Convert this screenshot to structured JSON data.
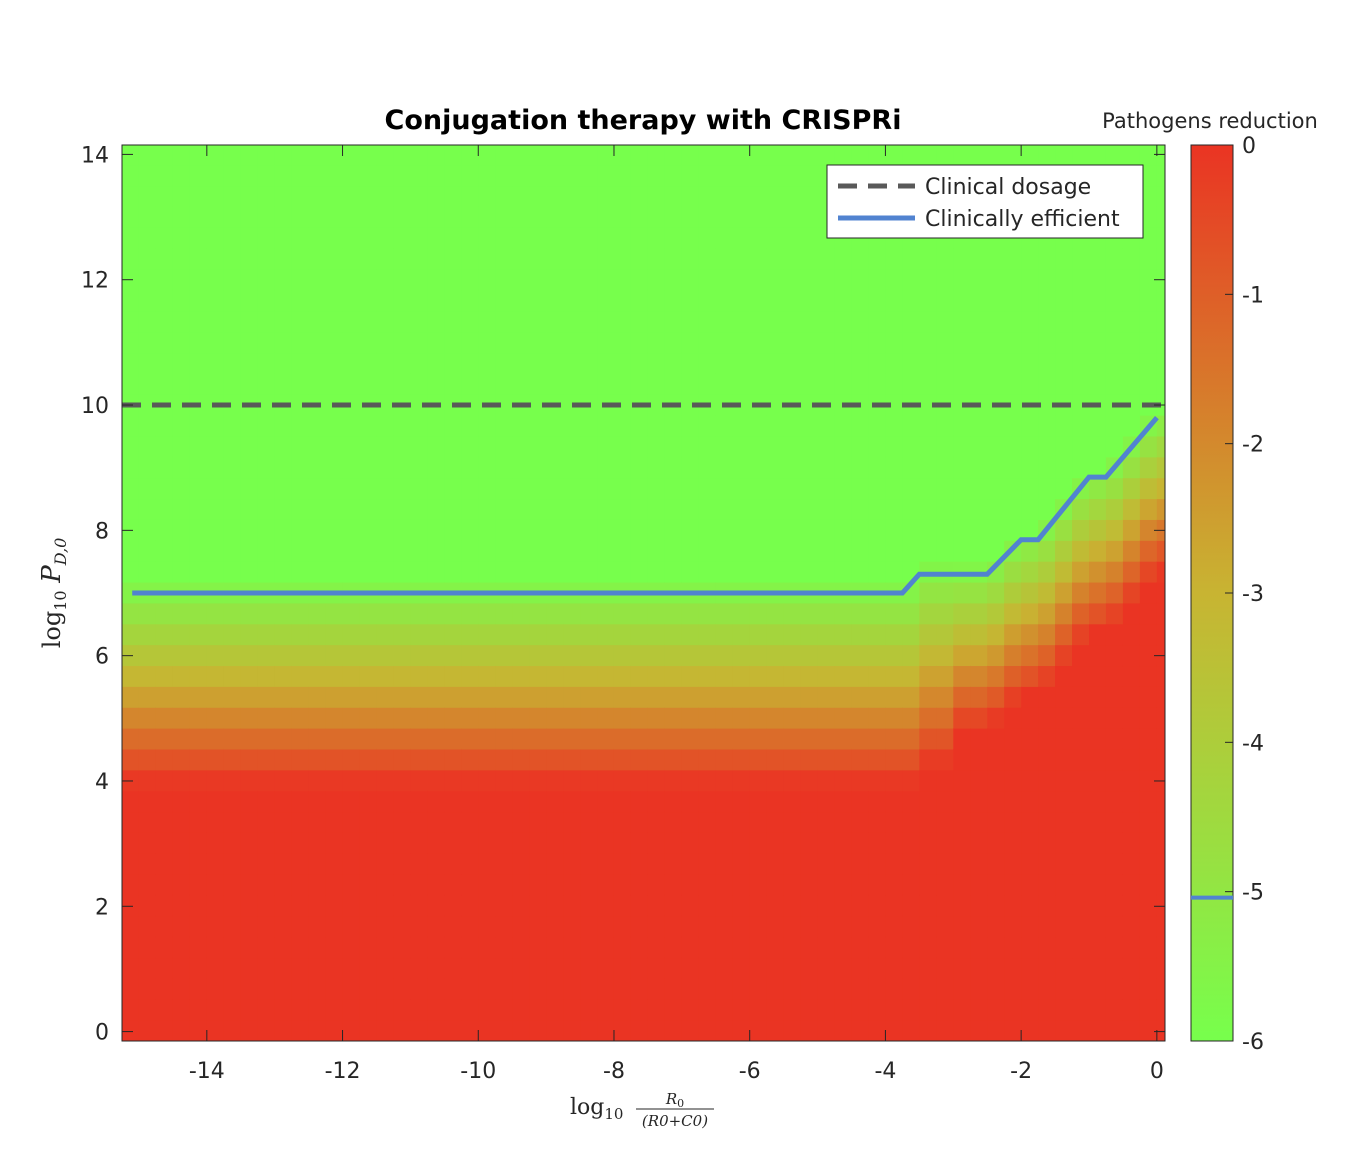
{
  "chart_data": {
    "type": "heatmap",
    "title": "Conjugation therapy with CRISPRi",
    "xlabel": {
      "main": "log",
      "sub": "10",
      "frac_num": "R",
      "frac_num_sub": "0",
      "frac_den": "(R0+C0)"
    },
    "ylabel": {
      "main": "log",
      "sub": "10",
      "var": "P",
      "var_sub": "D,0"
    },
    "xlim": [
      -15.25,
      0.12
    ],
    "ylim": [
      -0.15,
      14.15
    ],
    "xticks": [
      -14,
      -12,
      -10,
      -8,
      -6,
      -4,
      -2,
      0
    ],
    "xtick_labels": [
      "-14",
      "-12",
      "-10",
      "-8",
      "-6",
      "-4",
      "-2",
      "0"
    ],
    "yticks": [
      0,
      2,
      4,
      6,
      8,
      10,
      12,
      14
    ],
    "ytick_labels": [
      "0",
      "2",
      "4",
      "6",
      "8",
      "10",
      "12",
      "14"
    ],
    "colorbar": {
      "title": "Pathogens reduction",
      "range": [
        -6,
        0
      ],
      "ticks": [
        0,
        -1,
        -2,
        -3,
        -4,
        -5,
        -6
      ],
      "tick_labels": [
        "0",
        "-1",
        "-2",
        "-3",
        "-4",
        "-5",
        "-6"
      ],
      "marker_value": -5,
      "colors": {
        "low": "#77ff4c",
        "mid": "#c8b432",
        "high": "#ea3423"
      }
    },
    "series": [
      {
        "name": "Clinical dosage",
        "style": "dashed",
        "color": "#595959",
        "x": [
          -15.25,
          0.12
        ],
        "y": [
          10,
          10
        ]
      },
      {
        "name": "Clinically efficient",
        "style": "solid",
        "color": "#5183d0",
        "x": [
          -15.25,
          -3.75,
          -3.5,
          -2.5,
          -2.0,
          -1.75,
          -1.0,
          -0.75,
          0.0
        ],
        "y": [
          7.0,
          7.0,
          7.3,
          7.3,
          7.85,
          7.85,
          8.85,
          8.85,
          9.8
        ]
      }
    ],
    "legend_position": "top-right",
    "heatmap_model": {
      "flat_threshold_x": -3.5,
      "cell_width": 0.25,
      "cell_height": 0.333
    }
  }
}
